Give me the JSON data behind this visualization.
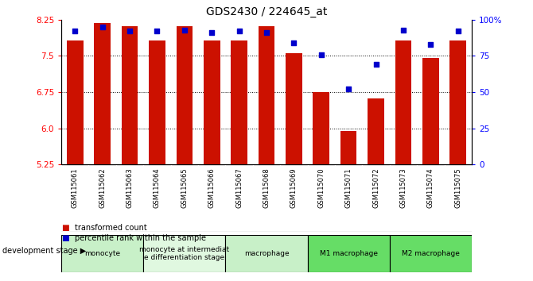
{
  "title": "GDS2430 / 224645_at",
  "samples": [
    "GSM115061",
    "GSM115062",
    "GSM115063",
    "GSM115064",
    "GSM115065",
    "GSM115066",
    "GSM115067",
    "GSM115068",
    "GSM115069",
    "GSM115070",
    "GSM115071",
    "GSM115072",
    "GSM115073",
    "GSM115074",
    "GSM115075"
  ],
  "red_values": [
    7.82,
    8.18,
    8.12,
    7.82,
    8.12,
    7.82,
    7.82,
    8.12,
    7.55,
    6.75,
    5.95,
    6.62,
    7.82,
    7.45,
    7.82
  ],
  "blue_values": [
    92,
    95,
    92,
    92,
    93,
    91,
    92,
    91,
    84,
    76,
    52,
    69,
    93,
    83,
    92
  ],
  "ymin": 5.25,
  "ymax": 8.25,
  "yticks": [
    5.25,
    6.0,
    6.75,
    7.5,
    8.25
  ],
  "right_yticks": [
    0,
    25,
    50,
    75,
    100
  ],
  "groups": [
    {
      "label": "monocyte",
      "start": 0,
      "end": 3,
      "color": "#c8f0c8"
    },
    {
      "label": "monocyte at intermediat\ne differentiation stage",
      "start": 3,
      "end": 6,
      "color": "#e0f8e0"
    },
    {
      "label": "macrophage",
      "start": 6,
      "end": 9,
      "color": "#c8f0c8"
    },
    {
      "label": "M1 macrophage",
      "start": 9,
      "end": 12,
      "color": "#66dd66"
    },
    {
      "label": "M2 macrophage",
      "start": 12,
      "end": 15,
      "color": "#66dd66"
    }
  ],
  "bar_color": "#cc1100",
  "dot_color": "#0000cc",
  "sample_bg": "#c8c8c8",
  "legend_red": "transformed count",
  "legend_blue": "percentile rank within the sample",
  "dev_stage_label": "development stage"
}
